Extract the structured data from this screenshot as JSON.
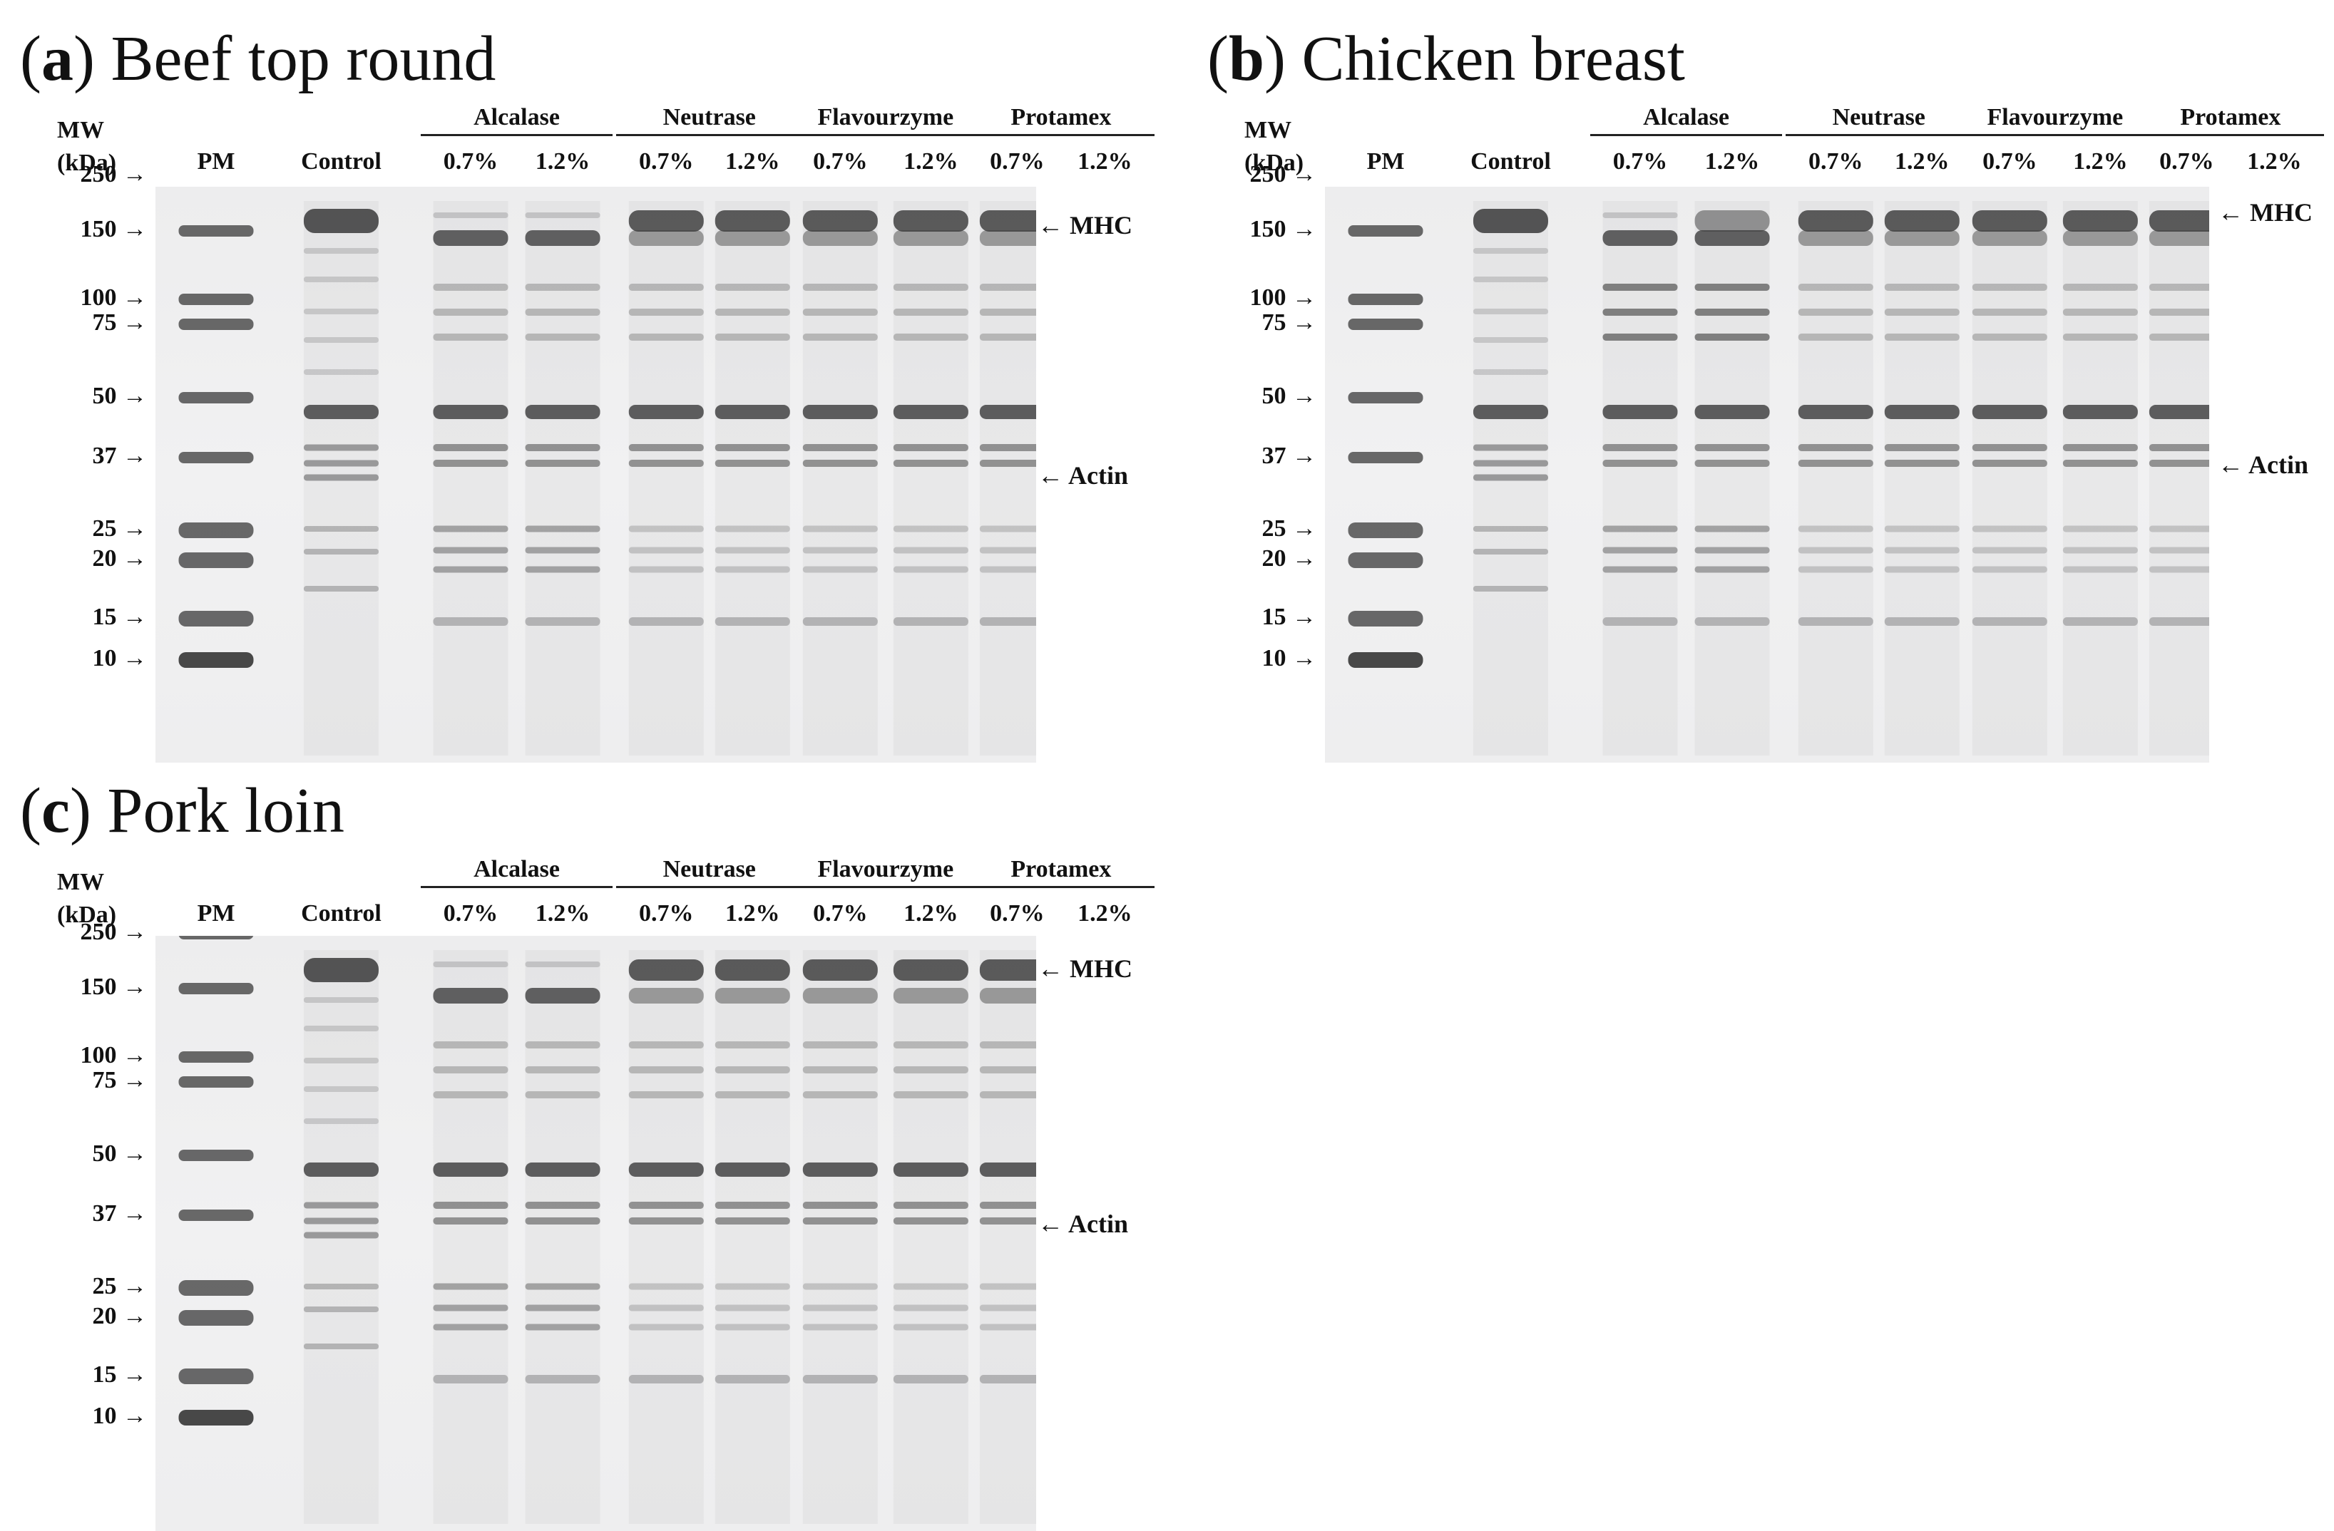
{
  "mw_header": {
    "line1": "MW",
    "line2": "(kDa)"
  },
  "lane_labels": {
    "pm": "PM",
    "control": "Control",
    "low": "0.7%",
    "high": "1.2%"
  },
  "enzymes": [
    "Alcalase",
    "Neutrase",
    "Flavourzyme",
    "Protamex"
  ],
  "mw_markers": [
    "250",
    "150",
    "100",
    "75",
    "50",
    "37",
    "25",
    "20",
    "15",
    "10"
  ],
  "arrow": "→",
  "band_markers": {
    "mhc": "← MHC",
    "actin": "← Actin"
  },
  "panels": [
    {
      "letter": "a",
      "title": "Beef top round"
    },
    {
      "letter": "b",
      "title": "Chicken breast"
    },
    {
      "letter": "c",
      "title": "Pork loin"
    }
  ]
}
